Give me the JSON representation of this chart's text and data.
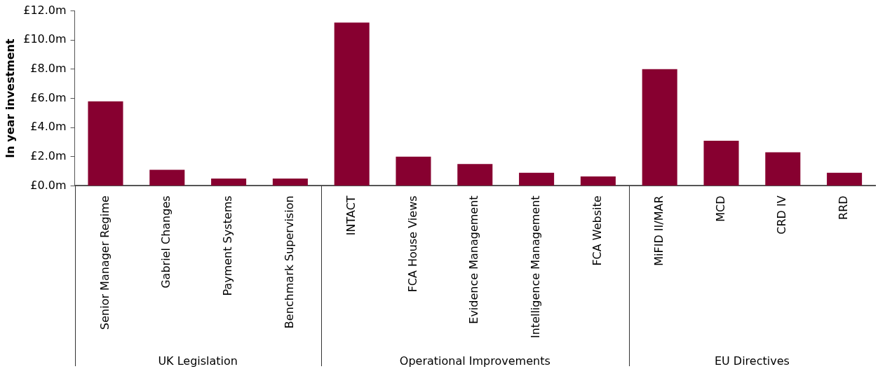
{
  "chart_data": {
    "type": "bar",
    "ylabel": "In year investment",
    "categories": [
      "Senior Manager Regime",
      "Gabriel Changes",
      "Payment Systems",
      "Benchmark Supervision",
      "INTACT",
      "FCA House Views",
      "Evidence Management",
      "Intelligence Management",
      "FCA Website",
      "MiFID II/MAR",
      "MCD",
      "CRD IV",
      "RRD"
    ],
    "values": [
      5.8,
      1.1,
      0.5,
      0.5,
      11.2,
      2.0,
      1.5,
      0.9,
      0.65,
      8.0,
      3.1,
      2.3,
      0.9
    ],
    "color": "#870030",
    "ylim": [
      0,
      12
    ],
    "yticks": [
      {
        "value": 0,
        "label": "£0.0m"
      },
      {
        "value": 2,
        "label": "£2.0m"
      },
      {
        "value": 4,
        "label": "£4.0m"
      },
      {
        "value": 6,
        "label": "£6.0m"
      },
      {
        "value": 8,
        "label": "£8.0m"
      },
      {
        "value": 10,
        "label": "£10.0m"
      },
      {
        "value": 12,
        "label": "£12.0m"
      }
    ],
    "grid": false,
    "annotations": [
      "UK Legislation",
      "Operational Improvements",
      "EU Directives"
    ]
  }
}
